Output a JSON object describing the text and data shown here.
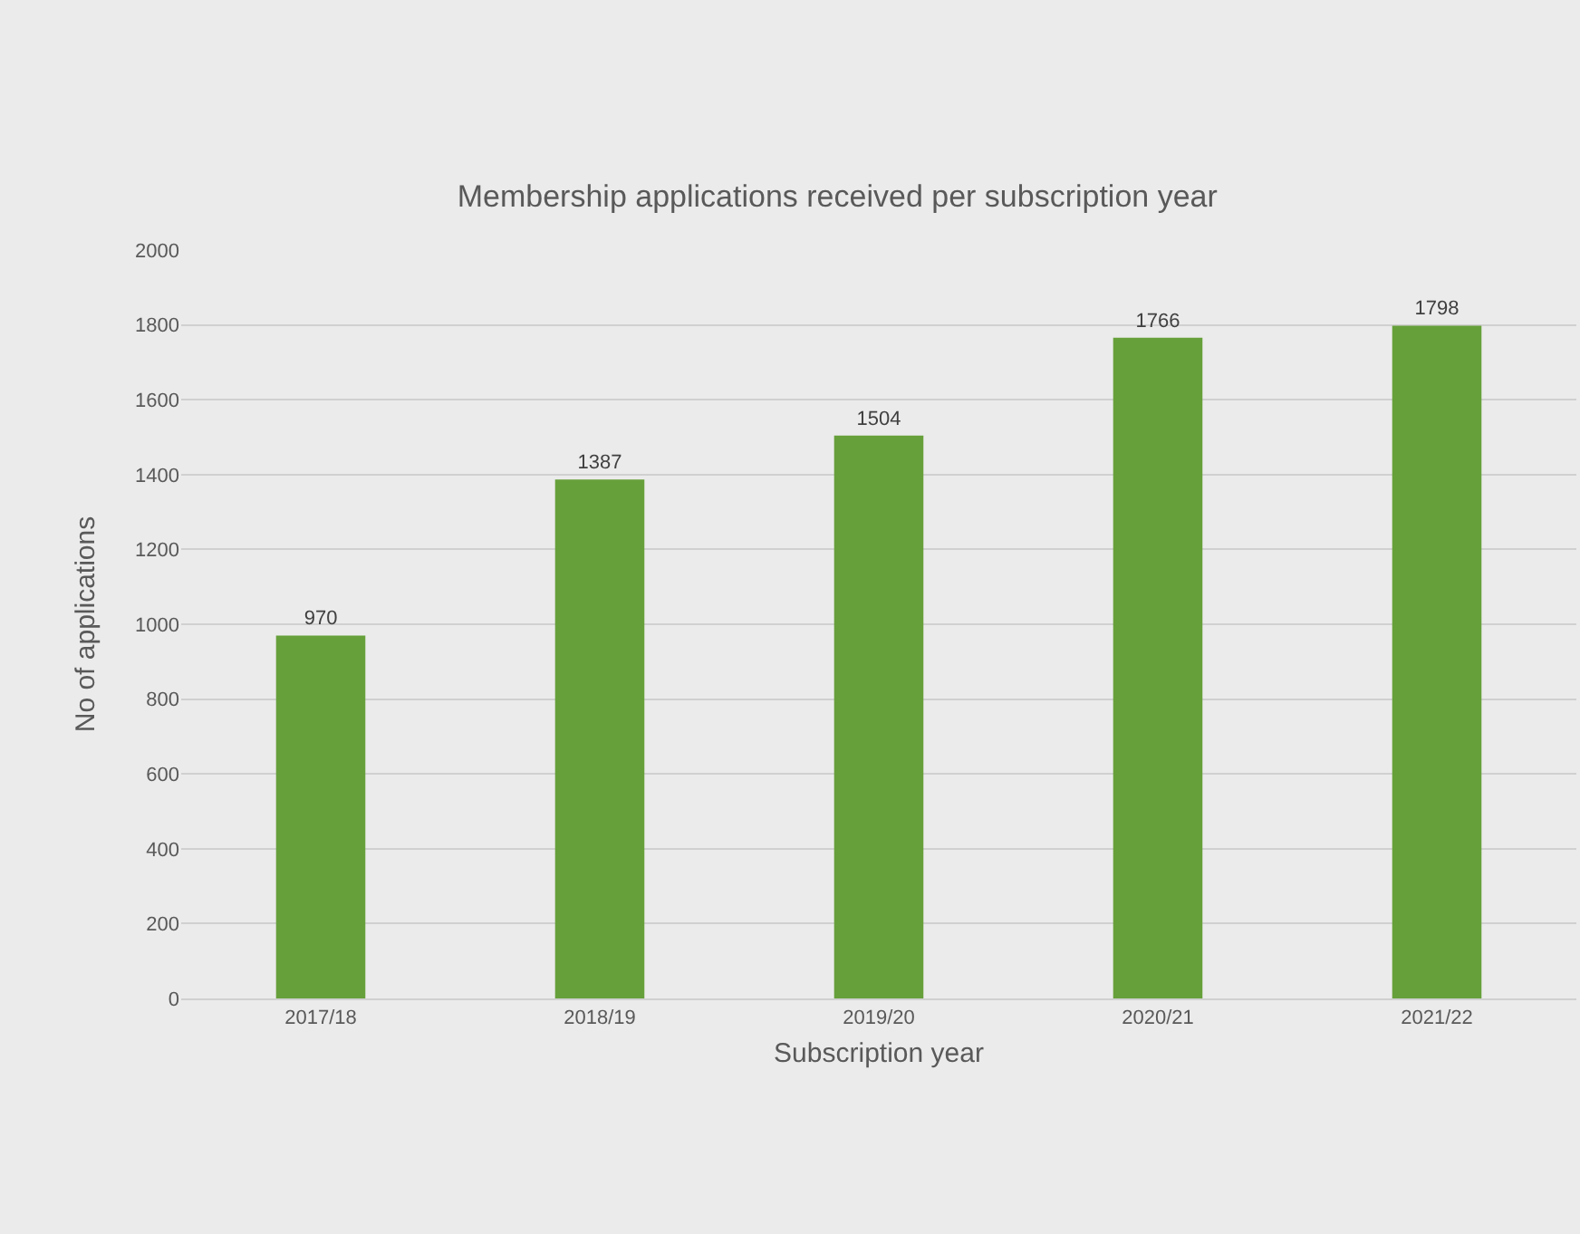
{
  "chart_data": {
    "type": "bar",
    "title": "Membership applications received per subscription year",
    "xlabel": "Subscription year",
    "ylabel": "No of applications",
    "categories": [
      "2017/18",
      "2018/19",
      "2019/20",
      "2020/21",
      "2021/22"
    ],
    "values": [
      970,
      1387,
      1504,
      1766,
      1798
    ],
    "color": "#66a03a",
    "ylim": [
      0,
      2000
    ],
    "yticks": [
      0,
      200,
      400,
      600,
      800,
      1000,
      1200,
      1400,
      1600,
      1800,
      2000
    ],
    "grid": "y",
    "data_labels": true,
    "legend": false
  }
}
